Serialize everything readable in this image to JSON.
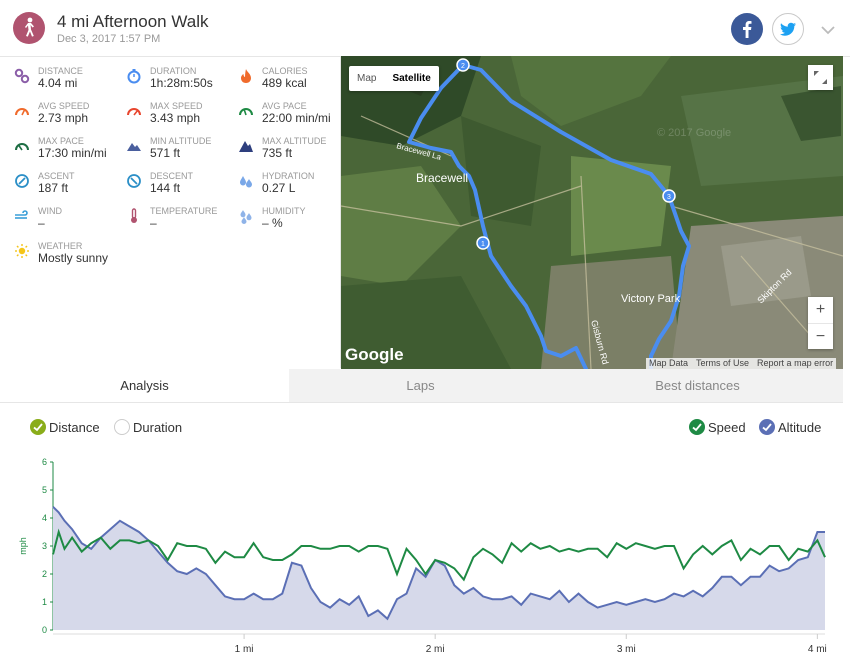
{
  "activity": {
    "title": "4 mi Afternoon Walk",
    "date": "Dec 3, 2017 1:57 PM",
    "icon": "walking-person-icon",
    "icon_color": "#b0536f"
  },
  "social": {
    "facebook_icon": "facebook-icon",
    "twitter_icon": "twitter-icon"
  },
  "stats": [
    {
      "label": "DISTANCE",
      "value": "4.04 mi",
      "icon": "distance-icon"
    },
    {
      "label": "DURATION",
      "value": "1h:28m:50s",
      "icon": "stopwatch-icon"
    },
    {
      "label": "CALORIES",
      "value": "489 kcal",
      "icon": "flame-icon"
    },
    {
      "label": "AVG SPEED",
      "value": "2.73 mph",
      "icon": "speedometer-icon"
    },
    {
      "label": "MAX SPEED",
      "value": "3.43 mph",
      "icon": "speedometer-icon"
    },
    {
      "label": "AVG PACE",
      "value": "22:00 min/mi",
      "icon": "pace-gauge-icon"
    },
    {
      "label": "MAX PACE",
      "value": "17:30 min/mi",
      "icon": "pace-gauge-icon"
    },
    {
      "label": "MIN ALTITUDE",
      "value": "571 ft",
      "icon": "mountain-icon"
    },
    {
      "label": "MAX ALTITUDE",
      "value": "735 ft",
      "icon": "mountain-icon"
    },
    {
      "label": "ASCENT",
      "value": "187 ft",
      "icon": "ascent-compass-icon"
    },
    {
      "label": "DESCENT",
      "value": "144 ft",
      "icon": "descent-compass-icon"
    },
    {
      "label": "HYDRATION",
      "value": "0.27 L",
      "icon": "water-drops-icon"
    },
    {
      "label": "WIND",
      "value": "–",
      "icon": "wind-icon"
    },
    {
      "label": "TEMPERATURE",
      "value": "–",
      "icon": "thermometer-icon"
    },
    {
      "label": "HUMIDITY",
      "value": "– %",
      "icon": "humidity-drops-icon"
    },
    {
      "label": "WEATHER",
      "value": "Mostly sunny",
      "icon": "sun-icon"
    }
  ],
  "map": {
    "type_buttons": [
      "Map",
      "Satellite"
    ],
    "selected_type": "Satellite",
    "place_labels": [
      "Bracewell",
      "Victory Park",
      "Skipton Rd",
      "Gisburn Rd",
      "Bracewell La",
      "© 2017 Google"
    ],
    "markers": [
      "1",
      "2",
      "3"
    ],
    "zoom_in": "+",
    "zoom_out": "−",
    "logo": "Google",
    "attribution": [
      "Map Data",
      "Terms of Use",
      "Report a map error"
    ],
    "route_color": "#4a8df0"
  },
  "tabs": [
    "Analysis",
    "Laps",
    "Best distances"
  ],
  "active_tab": "Analysis",
  "x_axis_options": [
    {
      "label": "Distance",
      "checked": true,
      "color": "#8aad1a"
    },
    {
      "label": "Duration",
      "checked": false,
      "color": "#ffffff"
    }
  ],
  "series_toggles": [
    {
      "label": "Speed",
      "checked": true,
      "color": "#1e8a44"
    },
    {
      "label": "Altitude",
      "checked": true,
      "color": "#5b6fb5"
    }
  ],
  "chart_data": {
    "type": "line",
    "ylabel": "mph",
    "ylim": [
      0,
      6
    ],
    "yticks": [
      "0",
      "1",
      "2",
      "3",
      "4",
      "5",
      "6"
    ],
    "xlim": [
      0,
      4.04
    ],
    "xticks": [
      {
        "value": 1,
        "label": "1 mi"
      },
      {
        "value": 2,
        "label": "2 mi"
      },
      {
        "value": 3,
        "label": "3 mi"
      },
      {
        "value": 4,
        "label": "4 mi"
      }
    ],
    "series": [
      {
        "name": "Speed",
        "color": "#1e8a44",
        "x": [
          0,
          0.03,
          0.06,
          0.1,
          0.15,
          0.2,
          0.25,
          0.3,
          0.35,
          0.4,
          0.45,
          0.5,
          0.55,
          0.6,
          0.65,
          0.7,
          0.75,
          0.8,
          0.85,
          0.9,
          0.95,
          1.0,
          1.05,
          1.1,
          1.15,
          1.2,
          1.25,
          1.3,
          1.35,
          1.4,
          1.45,
          1.5,
          1.55,
          1.6,
          1.65,
          1.7,
          1.75,
          1.8,
          1.85,
          1.9,
          1.95,
          2.0,
          2.05,
          2.1,
          2.15,
          2.2,
          2.25,
          2.3,
          2.35,
          2.4,
          2.45,
          2.5,
          2.55,
          2.6,
          2.65,
          2.7,
          2.75,
          2.8,
          2.85,
          2.9,
          2.95,
          3.0,
          3.05,
          3.1,
          3.15,
          3.2,
          3.25,
          3.3,
          3.35,
          3.4,
          3.45,
          3.5,
          3.55,
          3.6,
          3.65,
          3.7,
          3.75,
          3.8,
          3.85,
          3.9,
          3.95,
          4.0,
          4.04
        ],
        "values": [
          2.7,
          3.5,
          2.9,
          3.3,
          2.8,
          3.1,
          3.3,
          2.9,
          3.2,
          3.2,
          3.1,
          3.2,
          3.0,
          2.5,
          3.1,
          3.0,
          3.0,
          2.9,
          2.4,
          2.8,
          2.6,
          2.6,
          3.1,
          2.6,
          2.5,
          2.5,
          2.7,
          3.0,
          3.0,
          2.9,
          2.9,
          3.0,
          3.0,
          2.8,
          3.0,
          3.0,
          2.9,
          2.0,
          2.9,
          2.5,
          2.0,
          2.5,
          2.4,
          2.2,
          1.8,
          2.6,
          2.9,
          2.7,
          2.4,
          3.1,
          2.8,
          3.1,
          2.9,
          3.0,
          2.8,
          2.9,
          2.8,
          2.9,
          2.9,
          2.6,
          3.1,
          2.9,
          3.1,
          3.0,
          2.9,
          3.0,
          3.0,
          2.2,
          2.7,
          3.0,
          2.7,
          3.0,
          3.2,
          2.5,
          2.9,
          2.7,
          3.0,
          3.0,
          2.5,
          2.9,
          2.8,
          3.2,
          2.6
        ]
      },
      {
        "name": "Altitude",
        "color": "#5b6fb5",
        "x": [
          0,
          0.03,
          0.06,
          0.1,
          0.15,
          0.2,
          0.25,
          0.3,
          0.35,
          0.4,
          0.45,
          0.5,
          0.55,
          0.6,
          0.65,
          0.7,
          0.75,
          0.8,
          0.85,
          0.9,
          0.95,
          1.0,
          1.05,
          1.1,
          1.15,
          1.2,
          1.25,
          1.3,
          1.35,
          1.4,
          1.45,
          1.5,
          1.55,
          1.6,
          1.65,
          1.7,
          1.75,
          1.8,
          1.85,
          1.9,
          1.95,
          2.0,
          2.05,
          2.1,
          2.15,
          2.2,
          2.25,
          2.3,
          2.35,
          2.4,
          2.45,
          2.5,
          2.55,
          2.6,
          2.65,
          2.7,
          2.75,
          2.8,
          2.85,
          2.9,
          2.95,
          3.0,
          3.05,
          3.1,
          3.15,
          3.2,
          3.25,
          3.3,
          3.35,
          3.4,
          3.45,
          3.5,
          3.55,
          3.6,
          3.65,
          3.7,
          3.75,
          3.8,
          3.85,
          3.9,
          3.95,
          4.0,
          4.04
        ],
        "values": [
          4.4,
          4.2,
          3.9,
          3.6,
          3.1,
          2.9,
          3.3,
          3.6,
          3.9,
          3.7,
          3.5,
          3.2,
          2.8,
          2.4,
          2.1,
          2.0,
          2.2,
          2.0,
          1.6,
          1.2,
          1.1,
          1.1,
          1.3,
          1.1,
          1.1,
          1.3,
          2.4,
          2.3,
          1.5,
          1.0,
          0.8,
          1.1,
          0.9,
          1.2,
          0.5,
          0.7,
          0.4,
          1.1,
          1.3,
          2.2,
          1.9,
          2.5,
          2.3,
          1.6,
          1.3,
          1.5,
          1.2,
          1.1,
          1.1,
          1.2,
          0.9,
          1.3,
          1.2,
          1.1,
          1.4,
          1.0,
          1.3,
          1.0,
          0.8,
          0.9,
          1.0,
          0.9,
          1.0,
          1.1,
          1.0,
          1.1,
          1.3,
          1.2,
          1.4,
          1.2,
          1.5,
          1.9,
          1.9,
          1.6,
          1.9,
          1.9,
          2.3,
          2.1,
          2.2,
          2.5,
          2.6,
          3.5,
          3.5
        ]
      }
    ]
  }
}
